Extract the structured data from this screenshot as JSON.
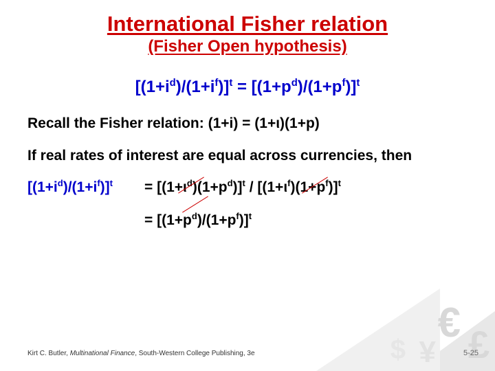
{
  "title": "International Fisher relation",
  "subtitle": "(Fisher Open hypothesis)",
  "main_equation_html": "[(1+i<sup>d</sup>)/(1+i<sup>f</sup>)]<sup>t</sup> = [(1+p<sup>d</sup>)/(1+p<sup>f</sup>)]<sup>t</sup>",
  "recall_html": "Recall the Fisher relation: (1+i) = (1+ι)(1+p)",
  "premise": "If real rates of interest are equal across currencies, then",
  "lhs_html": "[(1+i<sup>d</sup>)/(1+i<sup>f</sup>)]<sup>t</sup>",
  "rhs_line1_html": "= [(1+ι<sup>d</sup>)(1+p<sup>d</sup>)]<sup>t</sup> / [(1+ι<sup>f</sup>)(1+p<sup>f</sup>)]<sup>t</sup>",
  "rhs_line2_html": "= [(1+p<sup>d</sup>)/(1+p<sup>f</sup>)]<sup>t</sup>",
  "footer_author": "Kirt C. Butler, ",
  "footer_title": "Multinational Finance",
  "footer_pub": ", South-Western College Publishing, 3e",
  "page_number": "5-25",
  "colors": {
    "title_red": "#cc0000",
    "equation_blue": "#0000cc",
    "text_black": "#000000",
    "bg": "#ffffff"
  }
}
